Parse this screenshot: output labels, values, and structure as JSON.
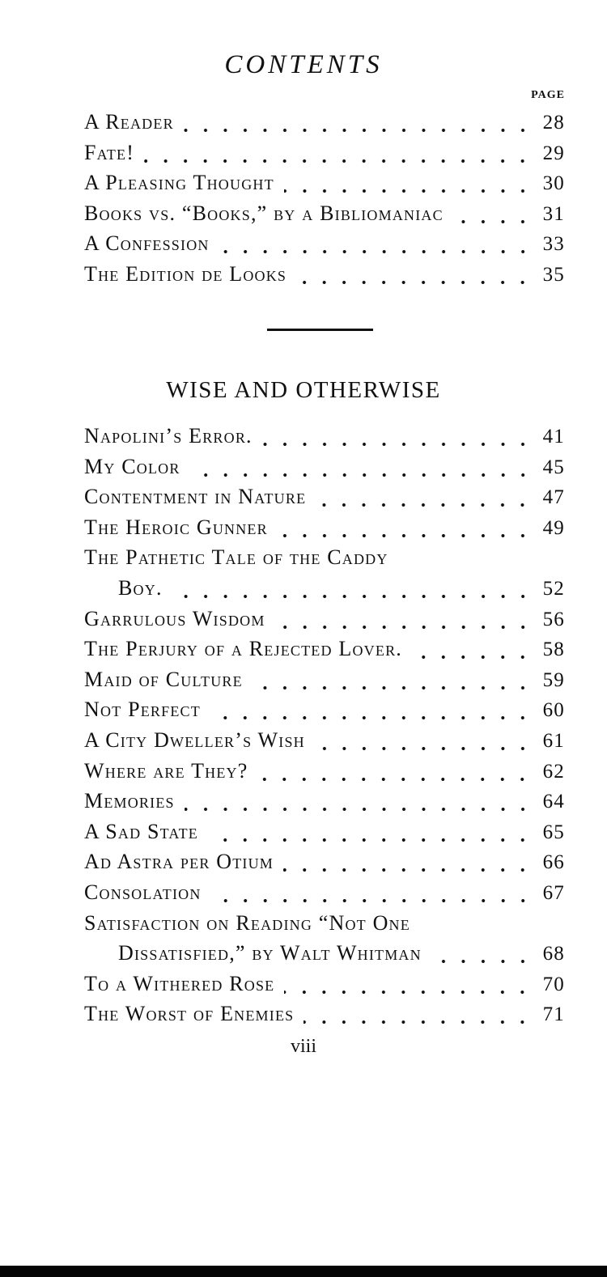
{
  "header": {
    "title": "CONTENTS",
    "page_label": "PAGE"
  },
  "entries_top": [
    {
      "title": "A Reader",
      "page": "28"
    },
    {
      "title": "Fate!",
      "page": "29"
    },
    {
      "title": "A Pleasing Thought",
      "page": "30"
    },
    {
      "title": "Books vs. “Books,” by a Bibliomaniac",
      "page": "31"
    },
    {
      "title": "A Confession",
      "page": "33"
    },
    {
      "title": "The Edition de Looks",
      "page": "35"
    }
  ],
  "section": {
    "title": "WISE AND OTHERWISE"
  },
  "entries_section": [
    {
      "title": "Napolini’s Error.",
      "page": "41"
    },
    {
      "title": "My Color",
      "page": "45"
    },
    {
      "title": "Contentment in Nature",
      "page": "47"
    },
    {
      "title": "The Heroic Gunner",
      "page": "49"
    },
    {
      "title": "The Pathetic Tale of the Caddy",
      "continuation": "Boy.",
      "page": "52"
    },
    {
      "title": "Garrulous Wisdom",
      "page": "56"
    },
    {
      "title": "The Perjury of a Rejected Lover.",
      "page": "58"
    },
    {
      "title": "Maid of Culture",
      "page": "59"
    },
    {
      "title": "Not Perfect",
      "page": "60"
    },
    {
      "title": "A City Dweller’s Wish",
      "page": "61"
    },
    {
      "title": "Where are They?",
      "page": "62"
    },
    {
      "title": "Memories",
      "page": "64"
    },
    {
      "title": "A Sad State",
      "page": "65"
    },
    {
      "title": "Ad Astra per Otium",
      "page": "66"
    },
    {
      "title": "Consolation",
      "page": "67"
    },
    {
      "title": "Satisfaction on Reading “Not One",
      "continuation": "Dissatisfied,” by Walt Whitman",
      "page": "68"
    },
    {
      "title": "To a Withered Rose",
      "page": "70"
    },
    {
      "title": "The Worst of Enemies",
      "page": "71"
    }
  ],
  "footer": {
    "folio": "viii"
  }
}
